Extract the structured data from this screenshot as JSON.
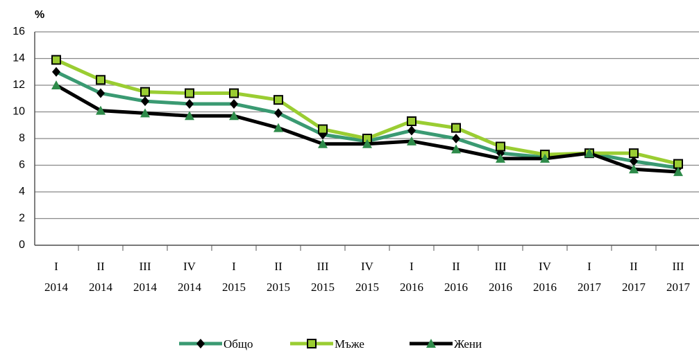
{
  "chart_data": {
    "type": "line",
    "y_label": "%",
    "categories": [
      [
        "I",
        "2014"
      ],
      [
        "II",
        "2014"
      ],
      [
        "III",
        "2014"
      ],
      [
        "IV",
        "2014"
      ],
      [
        "I",
        "2015"
      ],
      [
        "II",
        "2015"
      ],
      [
        "III",
        "2015"
      ],
      [
        "IV",
        "2015"
      ],
      [
        "I",
        "2016"
      ],
      [
        "II",
        "2016"
      ],
      [
        "III",
        "2016"
      ],
      [
        "IV",
        "2016"
      ],
      [
        "I",
        "2017"
      ],
      [
        "II",
        "2017"
      ],
      [
        "III",
        "2017"
      ]
    ],
    "series": [
      {
        "name": "Общо",
        "color": "#3a9a72",
        "marker": "diamond",
        "marker_color": "#000000",
        "values": [
          13.0,
          11.4,
          10.8,
          10.6,
          10.6,
          9.9,
          8.3,
          7.8,
          8.6,
          8.0,
          6.9,
          6.6,
          6.9,
          6.3,
          5.8
        ]
      },
      {
        "name": "Мъже",
        "color": "#9acd32",
        "marker": "square",
        "marker_color": "#9acd32",
        "values": [
          13.9,
          12.4,
          11.5,
          11.4,
          11.4,
          10.9,
          8.7,
          8.0,
          9.3,
          8.8,
          7.4,
          6.8,
          6.9,
          6.9,
          6.1
        ]
      },
      {
        "name": "Жени",
        "color": "#000000",
        "marker": "triangle",
        "marker_color": "#2e8b4a",
        "values": [
          12.0,
          10.1,
          9.9,
          9.7,
          9.7,
          8.8,
          7.6,
          7.6,
          7.8,
          7.2,
          6.5,
          6.5,
          6.9,
          5.7,
          5.5
        ]
      }
    ],
    "ylim": [
      0,
      16
    ],
    "yticks": [
      0,
      2,
      4,
      6,
      8,
      10,
      12,
      14,
      16
    ],
    "grid": true,
    "legend": "bottom"
  }
}
